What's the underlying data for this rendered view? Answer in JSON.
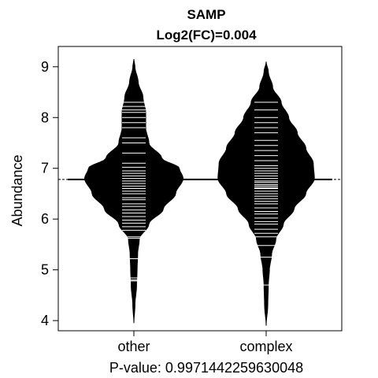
{
  "chart_data": {
    "type": "beanplot",
    "title": "SAMP",
    "subtitle": "Log2(FC)=0.004",
    "xlabel": "P-value: 0.9971442259630048",
    "ylabel": "Abundance",
    "categories": [
      "other",
      "complex"
    ],
    "ylim": [
      3.8,
      9.4
    ],
    "yticks": [
      4,
      5,
      6,
      7,
      8,
      9
    ],
    "overall_mean": 6.78,
    "grid": false,
    "legend": "none",
    "groups": [
      {
        "name": "other",
        "mean": 6.78,
        "density_profile": {
          "y": [
            3.95,
            4.3,
            4.7,
            5.0,
            5.3,
            5.6,
            5.9,
            6.2,
            6.5,
            6.8,
            7.0,
            7.2,
            7.5,
            7.8,
            8.1,
            8.4,
            8.7,
            9.0,
            9.15
          ],
          "half_width": [
            0.0,
            0.02,
            0.05,
            0.06,
            0.07,
            0.1,
            0.28,
            0.55,
            0.78,
            0.92,
            0.85,
            0.52,
            0.28,
            0.22,
            0.22,
            0.17,
            0.08,
            0.02,
            0.0
          ]
        },
        "observations": [
          4.78,
          4.8,
          4.84,
          5.22,
          5.62,
          5.65,
          5.78,
          5.85,
          5.92,
          5.98,
          6.05,
          6.12,
          6.18,
          6.25,
          6.3,
          6.38,
          6.42,
          6.5,
          6.55,
          6.6,
          6.65,
          6.7,
          6.75,
          6.8,
          6.85,
          6.9,
          6.95,
          7.02,
          7.1,
          7.3,
          7.5,
          7.6,
          7.8,
          7.9,
          8.0,
          8.1,
          8.15,
          8.22,
          8.3
        ]
      },
      {
        "name": "complex",
        "mean": 6.78,
        "density_profile": {
          "y": [
            3.9,
            4.3,
            4.7,
            5.0,
            5.3,
            5.6,
            5.9,
            6.2,
            6.5,
            6.8,
            7.1,
            7.4,
            7.7,
            8.0,
            8.3,
            8.6,
            8.9,
            9.1
          ],
          "half_width": [
            0.0,
            0.03,
            0.04,
            0.06,
            0.1,
            0.18,
            0.32,
            0.52,
            0.74,
            0.9,
            0.88,
            0.74,
            0.58,
            0.42,
            0.28,
            0.12,
            0.04,
            0.0
          ]
        },
        "observations": [
          4.7,
          5.25,
          5.48,
          5.65,
          5.72,
          5.8,
          5.9,
          5.95,
          6.02,
          6.1,
          6.15,
          6.22,
          6.3,
          6.35,
          6.4,
          6.45,
          6.5,
          6.55,
          6.6,
          6.62,
          6.65,
          6.68,
          6.72,
          6.75,
          6.8,
          6.85,
          6.9,
          6.95,
          7.0,
          7.05,
          7.15,
          7.25,
          7.35,
          7.45,
          7.55,
          7.7,
          7.8,
          7.9,
          8.0,
          8.15,
          8.3
        ]
      }
    ]
  }
}
